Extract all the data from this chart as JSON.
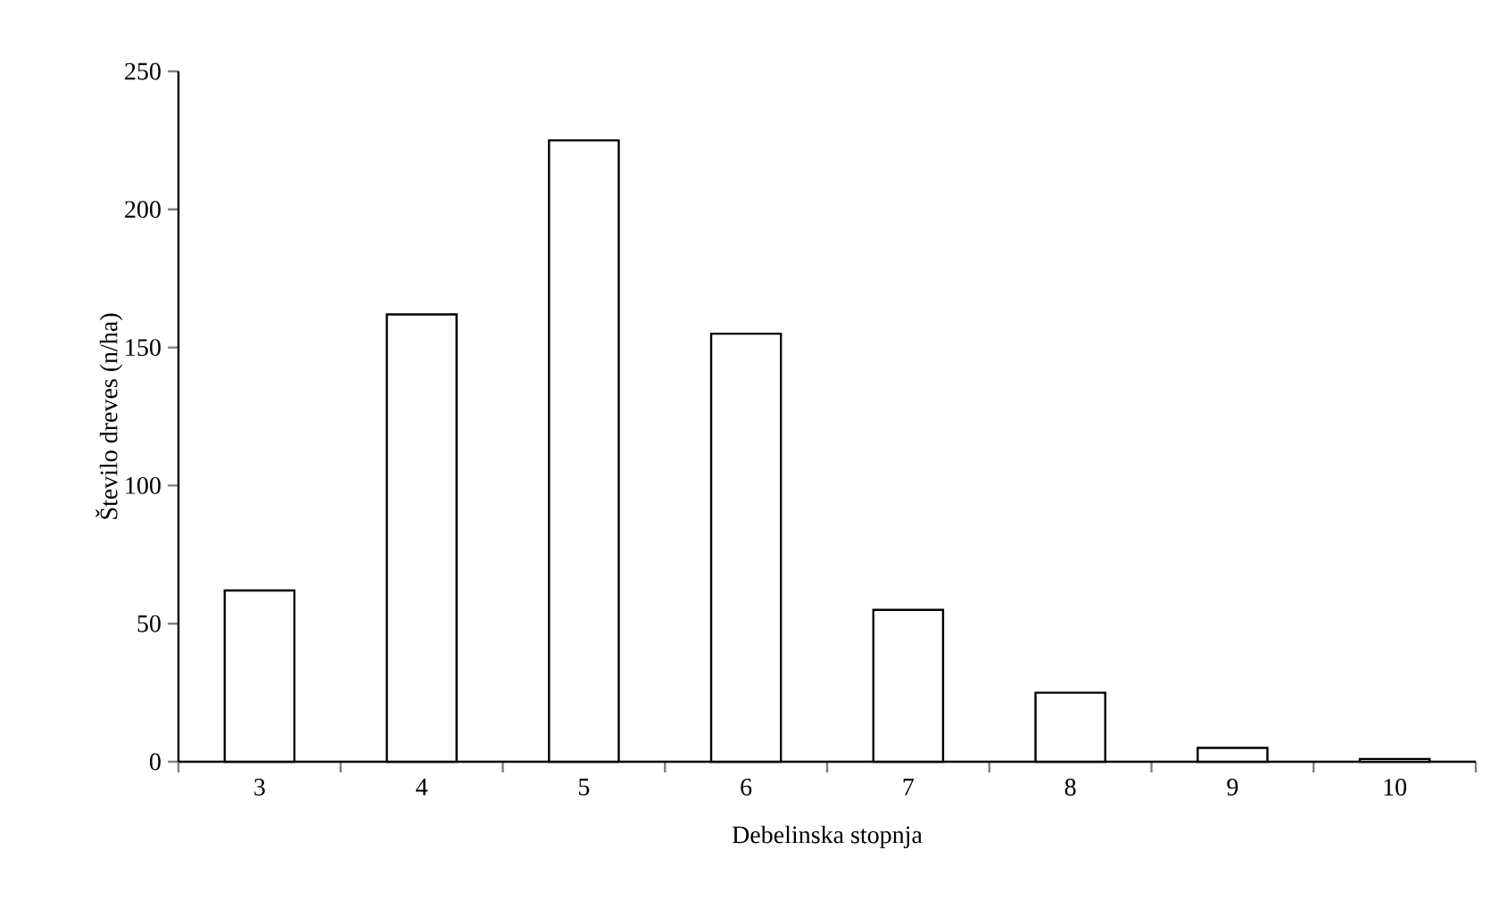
{
  "chart_data": {
    "type": "bar",
    "xlabel": "Debelinska stopnja",
    "ylabel": "Število dreves (n/ha)",
    "categories": [
      "3",
      "4",
      "5",
      "6",
      "7",
      "8",
      "9",
      "10"
    ],
    "values": [
      62,
      162,
      225,
      155,
      55,
      25,
      5,
      1
    ],
    "color": "#ffffff",
    "ylim": [
      0,
      250
    ],
    "yticks": [
      0,
      50,
      100,
      150,
      200,
      250
    ]
  }
}
